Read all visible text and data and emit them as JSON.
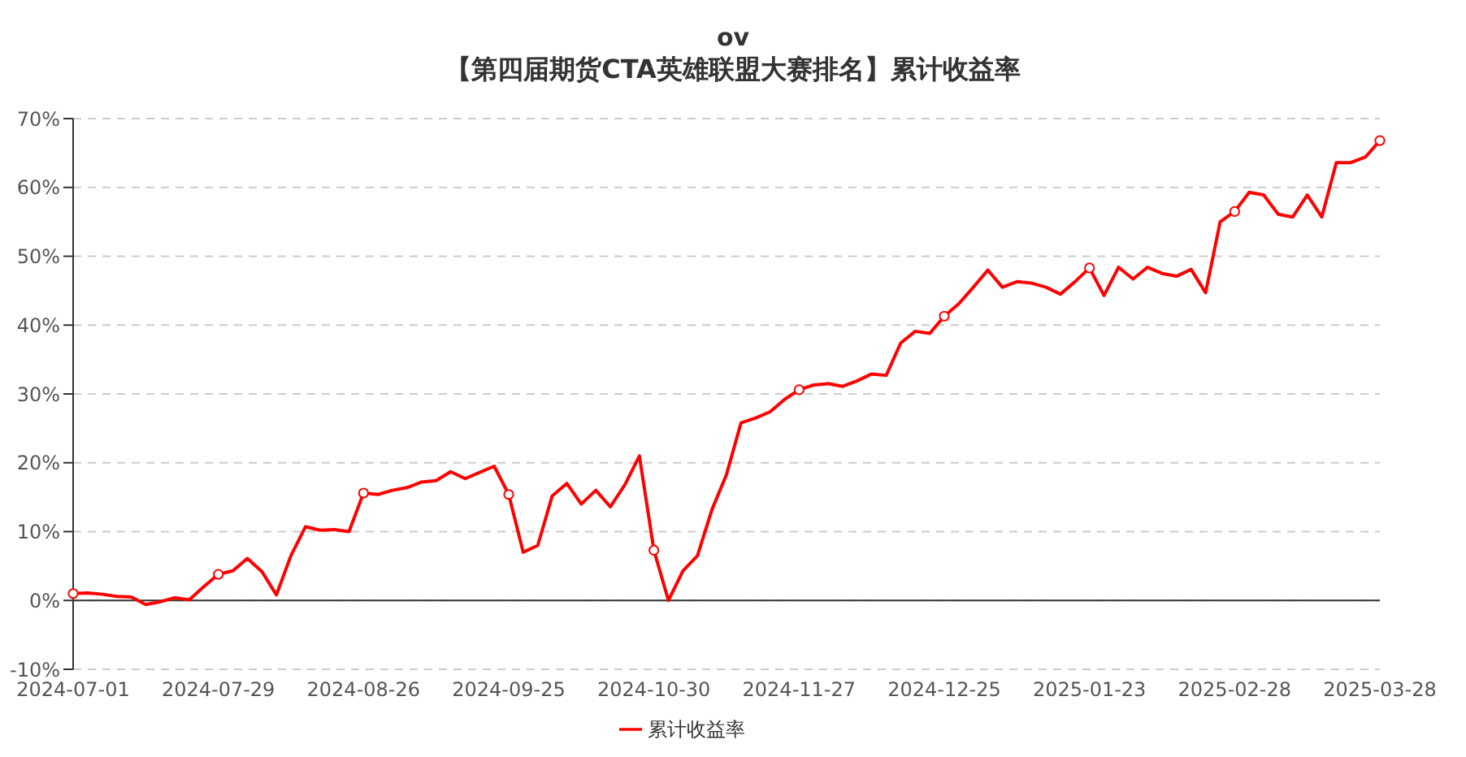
{
  "chart_data": {
    "type": "line",
    "title": "ov",
    "subtitle": "【第四届期货CTA英雄联盟大赛排名】累计收益率",
    "categories": [
      "2024-07-01",
      null,
      null,
      null,
      null,
      null,
      null,
      null,
      null,
      null,
      "2024-07-29",
      null,
      null,
      null,
      null,
      null,
      null,
      null,
      null,
      null,
      "2024-08-26",
      null,
      null,
      null,
      null,
      null,
      null,
      null,
      null,
      null,
      "2024-09-25",
      null,
      null,
      null,
      null,
      null,
      null,
      null,
      null,
      null,
      "2024-10-30",
      null,
      null,
      null,
      null,
      null,
      null,
      null,
      null,
      null,
      "2024-11-27",
      null,
      null,
      null,
      null,
      null,
      null,
      null,
      null,
      null,
      "2024-12-25",
      null,
      null,
      null,
      null,
      null,
      null,
      null,
      null,
      null,
      "2025-01-23",
      null,
      null,
      null,
      null,
      null,
      null,
      null,
      null,
      null,
      "2025-02-28",
      null,
      null,
      null,
      null,
      null,
      null,
      null,
      null,
      null,
      "2025-03-28"
    ],
    "series": [
      {
        "name": "累计收益率",
        "color": "#ff0000",
        "values": [
          1.0,
          1.1,
          0.9,
          0.6,
          0.5,
          -0.6,
          -0.2,
          0.4,
          0.1,
          2.0,
          3.8,
          4.3,
          6.1,
          4.2,
          0.8,
          6.5,
          10.7,
          10.2,
          10.3,
          10.0,
          15.6,
          15.4,
          16.0,
          16.4,
          17.2,
          17.4,
          18.7,
          17.7,
          18.6,
          19.5,
          15.4,
          7.0,
          8.0,
          15.2,
          17.0,
          14.0,
          16.0,
          13.6,
          16.8,
          21.0,
          7.3,
          0.0,
          4.3,
          6.5,
          13.2,
          18.3,
          25.8,
          26.5,
          27.4,
          29.2,
          30.6,
          31.3,
          31.5,
          31.1,
          31.9,
          32.9,
          32.7,
          37.4,
          39.1,
          38.8,
          41.3,
          43.1,
          45.5,
          48.0,
          45.5,
          46.3,
          46.1,
          45.5,
          44.5,
          46.3,
          48.3,
          44.3,
          48.4,
          46.7,
          48.4,
          47.5,
          47.1,
          48.1,
          44.7,
          55.0,
          56.5,
          59.3,
          58.9,
          56.1,
          55.7,
          58.9,
          55.7,
          63.6,
          63.6,
          64.4,
          66.8
        ]
      }
    ],
    "ylim": [
      -10,
      70
    ],
    "yticks": [
      {
        "value": -10,
        "label": "-10%"
      },
      {
        "value": 0,
        "label": "0%"
      },
      {
        "value": 10,
        "label": "10%"
      },
      {
        "value": 20,
        "label": "20%"
      },
      {
        "value": 30,
        "label": "30%"
      },
      {
        "value": 40,
        "label": "40%"
      },
      {
        "value": 50,
        "label": "50%"
      },
      {
        "value": 60,
        "label": "60%"
      },
      {
        "value": 70,
        "label": "70%"
      }
    ],
    "grid": "y",
    "legend": "bottom",
    "line_style": "solid"
  }
}
